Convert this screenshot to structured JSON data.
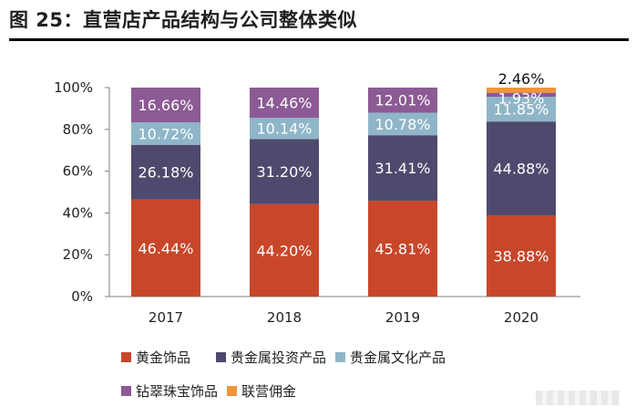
{
  "figure_title": "图 25：直营店产品结构与公司整体类似",
  "chart_data": {
    "type": "bar",
    "stacked": true,
    "categories": [
      "2017",
      "2018",
      "2019",
      "2020"
    ],
    "series": [
      {
        "name": "黄金饰品",
        "color": "#c8472a",
        "values": [
          46.44,
          44.2,
          45.81,
          38.88
        ],
        "labels": [
          "46.44%",
          "44.20%",
          "45.81%",
          "38.88%"
        ]
      },
      {
        "name": "贵金属投资产品",
        "color": "#4e4a6e",
        "values": [
          26.18,
          31.2,
          31.41,
          44.88
        ],
        "labels": [
          "26.18%",
          "31.20%",
          "31.41%",
          "44.88%"
        ]
      },
      {
        "name": "贵金属文化产品",
        "color": "#8fb6c8",
        "values": [
          10.72,
          10.14,
          10.78,
          11.85
        ],
        "labels": [
          "10.72%",
          "10.14%",
          "10.78%",
          "11.85%"
        ]
      },
      {
        "name": "钻翠珠宝饰品",
        "color": "#8c5a94",
        "values": [
          16.66,
          14.46,
          12.01,
          1.93
        ],
        "labels": [
          "16.66%",
          "14.46%",
          "12.01%",
          "1.93%"
        ]
      },
      {
        "name": "联营佣金",
        "color": "#f0953a",
        "values": [
          0,
          0,
          0,
          2.46
        ],
        "labels": [
          "",
          "",
          "",
          "2.46%"
        ]
      }
    ],
    "ylim": [
      0,
      100
    ],
    "yticks": [
      "0%",
      "20%",
      "40%",
      "60%",
      "80%",
      "100%"
    ],
    "xlabel": "",
    "ylabel": "",
    "legend_position": "bottom"
  }
}
